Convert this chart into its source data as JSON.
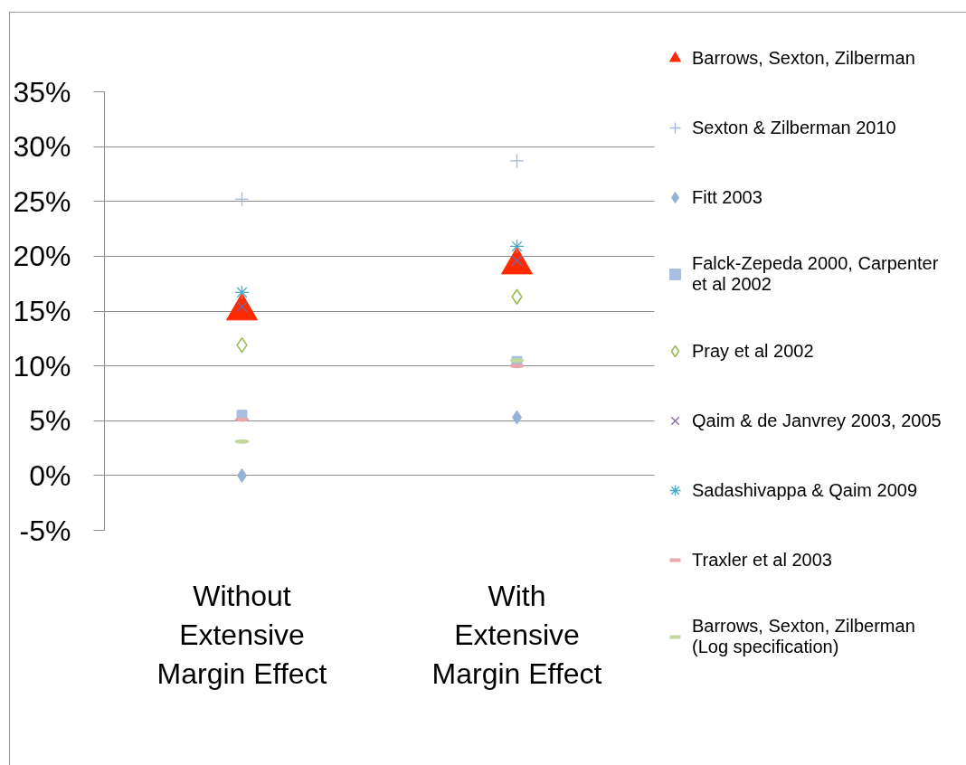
{
  "chart_data": {
    "type": "scatter",
    "categories": [
      "Without Extensive Margin Effect",
      "With Extensive Margin Effect"
    ],
    "ylim": [
      -5,
      35
    ],
    "yticks": [
      {
        "value": 35,
        "label": "35%"
      },
      {
        "value": 30,
        "label": "30%"
      },
      {
        "value": 25,
        "label": "25%"
      },
      {
        "value": 20,
        "label": "20%"
      },
      {
        "value": 15,
        "label": "15%"
      },
      {
        "value": 10,
        "label": "10%"
      },
      {
        "value": 5,
        "label": "5%"
      },
      {
        "value": 0,
        "label": "0%"
      },
      {
        "value": -5,
        "label": "-5%"
      }
    ],
    "grid": "y",
    "legend": "right",
    "series": [
      {
        "name": "Barrows, Sexton, Zilberman",
        "marker": "triangle",
        "color": "#ff2a00",
        "values": [
          15.0,
          19.2
        ]
      },
      {
        "name": "Sexton & Zilberman 2010",
        "marker": "plus",
        "color": "#a5b8d9",
        "values": [
          25.2,
          28.7
        ]
      },
      {
        "name": "Fitt 2003",
        "marker": "diamond",
        "color": "#95b3d7",
        "values": [
          0.0,
          5.3
        ]
      },
      {
        "name": "Falck-Zepeda 2000, Carpenter et al 2002",
        "marker": "square",
        "color": "#a7bfe0",
        "values": [
          5.5,
          10.4
        ]
      },
      {
        "name": "Pray et al 2002",
        "marker": "diamond-open",
        "color": "#9bbb59",
        "values": [
          11.9,
          16.3
        ]
      },
      {
        "name": "Qaim & de Janvrey 2003, 2005",
        "marker": "x",
        "color": "#8064a2",
        "values": [
          15.4,
          19.6
        ]
      },
      {
        "name": "Sadashivappa & Qaim 2009",
        "marker": "cross",
        "color": "#4bacc6",
        "values": [
          16.7,
          20.9
        ]
      },
      {
        "name": "Traxler et al 2003",
        "color": "#e6a7ad",
        "values": [
          5.1,
          10.0
        ]
      },
      {
        "name": "Barrows, Sexton, Zilberman (Log specification)",
        "color": "#c3d69b",
        "values": [
          3.1,
          10.5
        ]
      }
    ]
  }
}
